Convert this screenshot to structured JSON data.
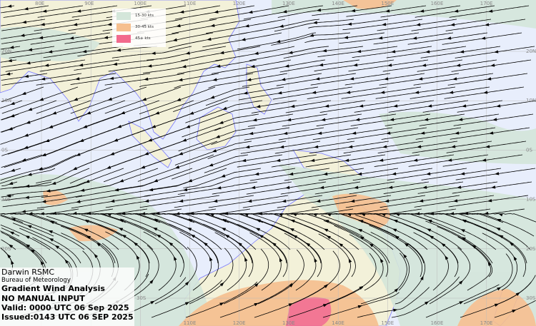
{
  "legend": [
    {
      "label": "15-30 kts",
      "color": "#d4e6da"
    },
    {
      "label": "30-45 kts",
      "color": "#f6bf8e"
    },
    {
      "label": "45+ kts",
      "color": "#f26a8d"
    }
  ],
  "info": {
    "office": "Darwin RSMC",
    "agency": "Bureau of Meteorology",
    "product": "Gradient Wind Analysis",
    "note": "NO MANUAL INPUT",
    "valid": "Valid:   0000 UTC 06 Sep 2025",
    "issued": "Issued:0143 UTC 06 SEP 2025"
  },
  "longitude_labels": [
    "80E",
    "90E",
    "100E",
    "110E",
    "120E",
    "130E",
    "140E",
    "150E",
    "160E",
    "170E"
  ],
  "latitude_labels_left": [
    "20N",
    "10N",
    "0S",
    "10S",
    "20S",
    "30S"
  ],
  "latitude_labels_right": [
    "20N",
    "10N",
    "0S",
    "10S",
    "20S",
    "30S"
  ],
  "colors": {
    "ocean": "#e8eefc",
    "land": "#f3f1d9",
    "coast": "#7a7aff",
    "streamline": "#000000",
    "grid": "#bbbbbb"
  }
}
